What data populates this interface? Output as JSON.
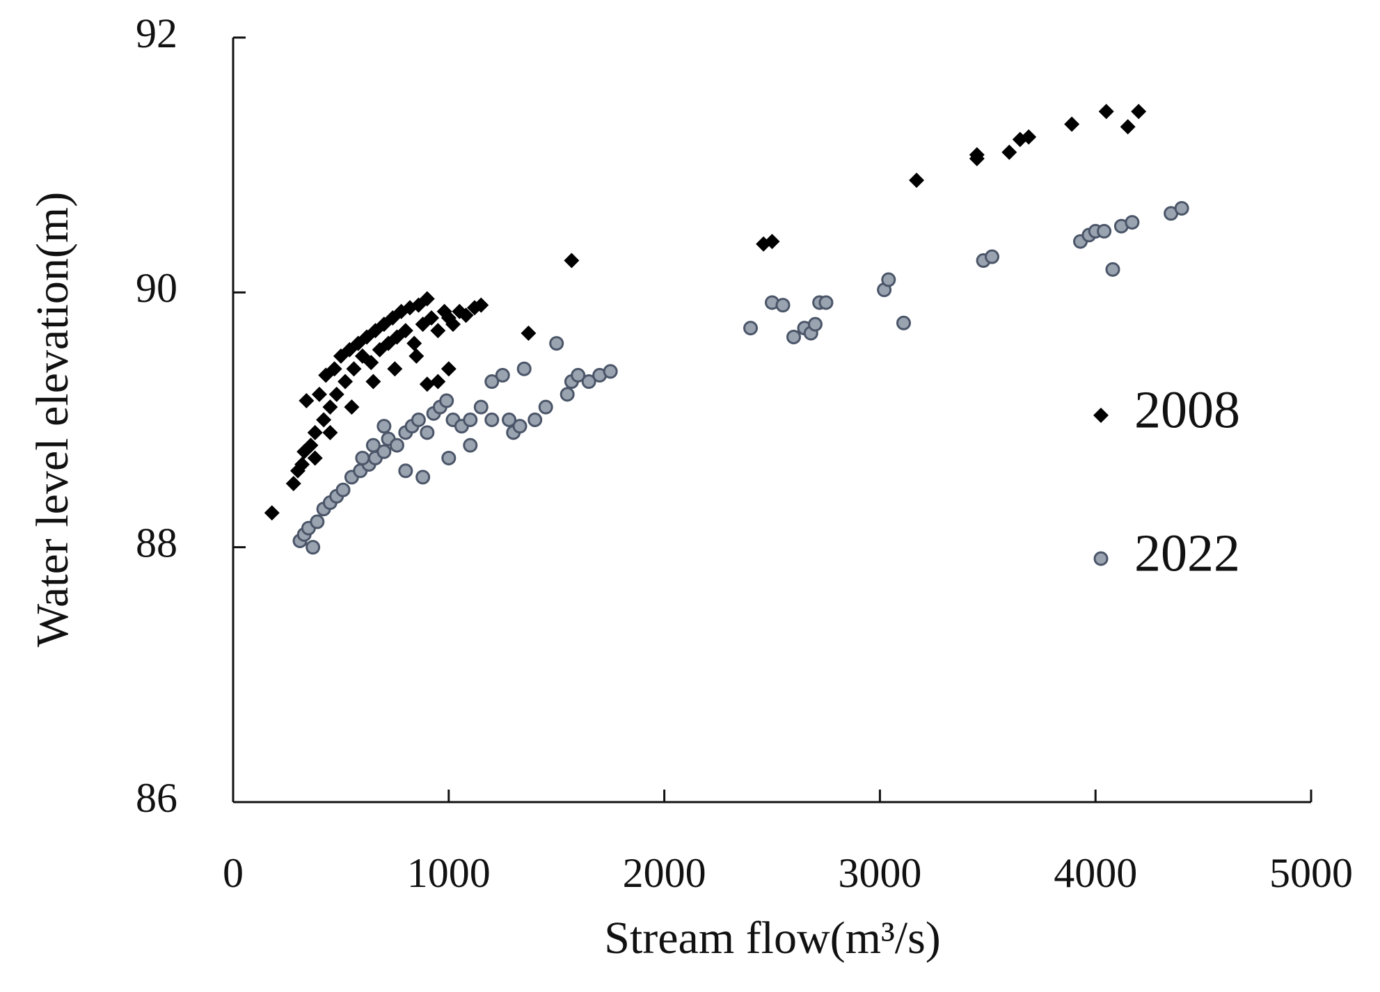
{
  "chart_data": {
    "type": "scatter",
    "xlabel": "Stream flow(m³/s)",
    "ylabel": "Water level elevation(m)",
    "xlim": [
      0,
      5000
    ],
    "xticks": [
      0,
      1000,
      2000,
      3000,
      4000,
      5000
    ],
    "ylim": [
      86,
      92
    ],
    "yticks": [
      86,
      88,
      90,
      92
    ],
    "legend": "right",
    "series": [
      {
        "name": "2008",
        "color": "#000000",
        "marker": "diamond",
        "x": [
          180,
          280,
          300,
          320,
          330,
          340,
          360,
          380,
          400,
          420,
          430,
          450,
          470,
          480,
          500,
          520,
          540,
          560,
          580,
          600,
          620,
          640,
          660,
          680,
          700,
          720,
          740,
          760,
          780,
          800,
          820,
          840,
          860,
          880,
          900,
          920,
          950,
          980,
          1000,
          1020,
          1050,
          1080,
          1120,
          1150,
          1000,
          850,
          750,
          650,
          550,
          450,
          380,
          900,
          950,
          1370,
          1570,
          2460,
          2500,
          3170,
          3450,
          3450,
          3600,
          3650,
          3690,
          3890,
          4050,
          4150,
          4200
        ],
        "y": [
          88.27,
          88.5,
          88.6,
          88.65,
          88.75,
          89.15,
          88.8,
          88.9,
          89.2,
          89.0,
          89.35,
          89.1,
          89.4,
          89.2,
          89.5,
          89.3,
          89.55,
          89.4,
          89.6,
          89.5,
          89.65,
          89.45,
          89.7,
          89.55,
          89.75,
          89.6,
          89.8,
          89.65,
          89.85,
          89.7,
          89.88,
          89.6,
          89.9,
          89.75,
          89.95,
          89.8,
          89.7,
          89.85,
          89.8,
          89.75,
          89.85,
          89.82,
          89.88,
          89.9,
          89.4,
          89.5,
          89.4,
          89.3,
          89.1,
          88.9,
          88.7,
          89.28,
          89.3,
          89.68,
          90.25,
          90.38,
          90.4,
          90.88,
          91.08,
          91.05,
          91.1,
          91.2,
          91.22,
          91.32,
          91.42,
          91.3,
          91.42
        ]
      },
      {
        "name": "2022",
        "color": "#9aa3b0",
        "marker": "circle",
        "x": [
          310,
          330,
          350,
          370,
          390,
          420,
          450,
          480,
          510,
          550,
          590,
          630,
          660,
          700,
          720,
          760,
          800,
          830,
          860,
          880,
          900,
          930,
          960,
          990,
          1000,
          1020,
          1060,
          1100,
          1150,
          1200,
          1250,
          1280,
          1300,
          1330,
          1350,
          1400,
          1450,
          1550,
          1570,
          1600,
          1650,
          1700,
          1750,
          1200,
          1100,
          700,
          650,
          600,
          800,
          1500,
          2400,
          2500,
          2550,
          2600,
          2650,
          2680,
          2700,
          2720,
          2750,
          3020,
          3040,
          3110,
          3480,
          3520,
          3930,
          3970,
          4000,
          4040,
          4080,
          4120,
          4170,
          4350,
          4400
        ],
        "y": [
          88.05,
          88.1,
          88.15,
          88.0,
          88.2,
          88.3,
          88.35,
          88.4,
          88.45,
          88.55,
          88.6,
          88.65,
          88.7,
          88.75,
          88.85,
          88.8,
          88.9,
          88.95,
          89.0,
          88.55,
          88.9,
          89.05,
          89.1,
          89.15,
          88.7,
          89.0,
          88.95,
          89.0,
          89.1,
          89.3,
          89.35,
          89.0,
          88.9,
          88.95,
          89.4,
          89.0,
          89.1,
          89.2,
          89.3,
          89.35,
          89.3,
          89.35,
          89.38,
          89.0,
          88.8,
          88.95,
          88.8,
          88.7,
          88.6,
          89.6,
          89.72,
          89.92,
          89.9,
          89.65,
          89.72,
          89.68,
          89.75,
          89.92,
          89.92,
          90.02,
          90.1,
          89.76,
          90.25,
          90.28,
          90.4,
          90.45,
          90.48,
          90.48,
          90.18,
          90.52,
          90.55,
          90.62,
          90.66
        ]
      }
    ]
  }
}
